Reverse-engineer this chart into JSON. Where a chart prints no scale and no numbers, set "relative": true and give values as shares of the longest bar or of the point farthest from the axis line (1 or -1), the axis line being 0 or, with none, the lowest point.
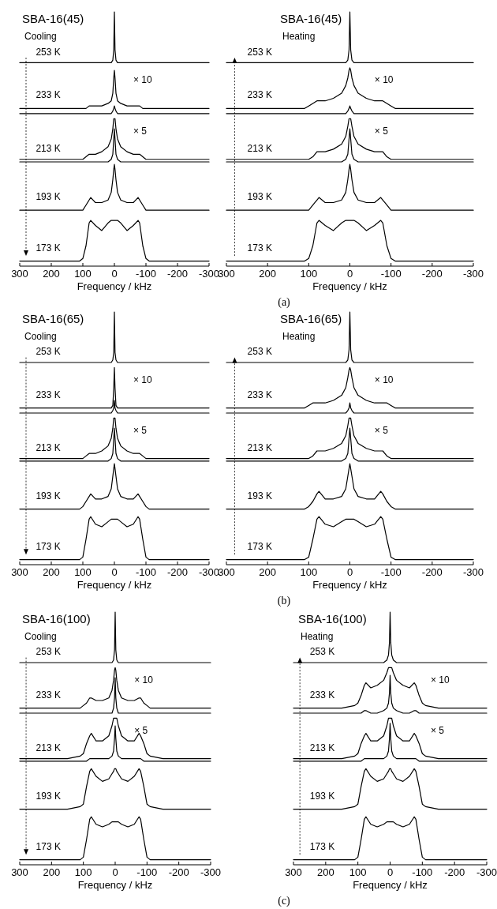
{
  "chart_data": [
    {
      "type": "line",
      "title": "SBA-16(45)",
      "subtitle": "Cooling",
      "xlabel": "Frequency / kHz",
      "relative": true,
      "color": "#000000",
      "xlim": [
        300,
        -300
      ],
      "xticks": [
        300,
        200,
        100,
        0,
        -100,
        -200,
        -300
      ],
      "x": [
        300,
        200,
        150,
        110,
        100,
        90,
        80,
        75,
        60,
        40,
        20,
        10,
        5,
        2,
        0,
        -2,
        -5,
        -10,
        -20,
        -40,
        -60,
        -75,
        -80,
        -90,
        -100,
        -110,
        -150,
        -200,
        -300
      ],
      "series": [
        {
          "values": [
            0.8,
            0.8,
            0.8,
            0.8,
            0.8,
            0.8,
            0.8,
            0.8,
            0.8,
            0.8,
            0.8,
            0.8,
            0.81,
            0.85,
            1,
            0.85,
            0.81,
            0.8,
            0.8,
            0.8,
            0.8,
            0.8,
            0.8,
            0.8,
            0.8,
            0.8,
            0.8,
            0.8,
            0.8
          ]
        },
        {
          "values": [
            0.62,
            0.62,
            0.62,
            0.62,
            0.62,
            0.62,
            0.63,
            0.63,
            0.63,
            0.63,
            0.64,
            0.65,
            0.68,
            0.74,
            0.77,
            0.74,
            0.68,
            0.65,
            0.64,
            0.63,
            0.63,
            0.63,
            0.63,
            0.62,
            0.62,
            0.62,
            0.62,
            0.62,
            0.62
          ]
        },
        {
          "values": [
            0.6,
            0.6,
            0.6,
            0.6,
            0.6,
            0.6,
            0.6,
            0.6,
            0.6,
            0.6,
            0.6,
            0.6,
            0.61,
            0.62,
            0.63,
            0.62,
            0.61,
            0.6,
            0.6,
            0.6,
            0.6,
            0.6,
            0.6,
            0.6,
            0.6,
            0.6,
            0.6,
            0.6,
            0.6
          ]
        },
        {
          "values": [
            0.42,
            0.42,
            0.42,
            0.42,
            0.42,
            0.43,
            0.44,
            0.44,
            0.44,
            0.45,
            0.47,
            0.5,
            0.54,
            0.58,
            0.58,
            0.58,
            0.54,
            0.5,
            0.47,
            0.45,
            0.44,
            0.44,
            0.44,
            0.43,
            0.42,
            0.42,
            0.42,
            0.42,
            0.42
          ]
        },
        {
          "values": [
            0.41,
            0.41,
            0.41,
            0.41,
            0.41,
            0.41,
            0.41,
            0.41,
            0.41,
            0.41,
            0.41,
            0.42,
            0.44,
            0.5,
            0.54,
            0.5,
            0.44,
            0.42,
            0.41,
            0.41,
            0.41,
            0.41,
            0.41,
            0.41,
            0.41,
            0.41,
            0.41,
            0.41,
            0.41
          ]
        },
        {
          "values": [
            0.22,
            0.22,
            0.22,
            0.22,
            0.22,
            0.24,
            0.26,
            0.27,
            0.25,
            0.25,
            0.26,
            0.29,
            0.34,
            0.38,
            0.4,
            0.38,
            0.34,
            0.29,
            0.26,
            0.25,
            0.25,
            0.27,
            0.26,
            0.24,
            0.22,
            0.22,
            0.22,
            0.22,
            0.22
          ]
        },
        {
          "values": [
            0.02,
            0.02,
            0.02,
            0.02,
            0.03,
            0.08,
            0.17,
            0.18,
            0.16,
            0.14,
            0.17,
            0.18,
            0.18,
            0.18,
            0.18,
            0.18,
            0.18,
            0.18,
            0.17,
            0.14,
            0.16,
            0.18,
            0.17,
            0.08,
            0.03,
            0.02,
            0.02,
            0.02,
            0.02
          ]
        }
      ],
      "annotations": [
        "253 K",
        "233 K",
        "× 10",
        "213 K",
        "× 5",
        "193 K",
        "173 K"
      ]
    },
    {
      "type": "line",
      "title": "SBA-16(45)",
      "subtitle": "Heating",
      "xlabel": "Frequency / kHz",
      "relative": true,
      "color": "#000000",
      "xlim": [
        300,
        -300
      ],
      "xticks": [
        300,
        200,
        100,
        0,
        -100,
        -200,
        -300
      ],
      "x": [
        300,
        200,
        150,
        110,
        100,
        90,
        80,
        75,
        60,
        40,
        20,
        10,
        5,
        2,
        0,
        -2,
        -5,
        -10,
        -20,
        -40,
        -60,
        -75,
        -80,
        -90,
        -100,
        -110,
        -150,
        -200,
        -300
      ],
      "series": [
        {
          "values": [
            0.8,
            0.8,
            0.8,
            0.8,
            0.8,
            0.8,
            0.8,
            0.8,
            0.8,
            0.8,
            0.8,
            0.8,
            0.81,
            0.85,
            1,
            0.85,
            0.81,
            0.8,
            0.8,
            0.8,
            0.8,
            0.8,
            0.8,
            0.8,
            0.8,
            0.8,
            0.8,
            0.8,
            0.8
          ]
        },
        {
          "values": [
            0.62,
            0.62,
            0.62,
            0.62,
            0.63,
            0.64,
            0.65,
            0.65,
            0.65,
            0.66,
            0.68,
            0.71,
            0.74,
            0.77,
            0.78,
            0.77,
            0.74,
            0.71,
            0.68,
            0.66,
            0.65,
            0.65,
            0.65,
            0.64,
            0.63,
            0.62,
            0.62,
            0.62,
            0.62
          ]
        },
        {
          "values": [
            0.6,
            0.6,
            0.6,
            0.6,
            0.6,
            0.6,
            0.6,
            0.6,
            0.6,
            0.6,
            0.6,
            0.6,
            0.61,
            0.62,
            0.63,
            0.62,
            0.61,
            0.6,
            0.6,
            0.6,
            0.6,
            0.6,
            0.6,
            0.6,
            0.6,
            0.6,
            0.6,
            0.6,
            0.6
          ]
        },
        {
          "values": [
            0.42,
            0.42,
            0.42,
            0.42,
            0.42,
            0.43,
            0.45,
            0.45,
            0.45,
            0.46,
            0.48,
            0.51,
            0.55,
            0.58,
            0.58,
            0.58,
            0.55,
            0.51,
            0.48,
            0.46,
            0.45,
            0.45,
            0.45,
            0.43,
            0.42,
            0.42,
            0.42,
            0.42,
            0.42
          ]
        },
        {
          "values": [
            0.41,
            0.41,
            0.41,
            0.41,
            0.41,
            0.41,
            0.41,
            0.41,
            0.41,
            0.41,
            0.41,
            0.42,
            0.44,
            0.5,
            0.54,
            0.5,
            0.44,
            0.42,
            0.41,
            0.41,
            0.41,
            0.41,
            0.41,
            0.41,
            0.41,
            0.41,
            0.41,
            0.41,
            0.41
          ]
        },
        {
          "values": [
            0.22,
            0.22,
            0.22,
            0.22,
            0.22,
            0.24,
            0.26,
            0.27,
            0.25,
            0.25,
            0.26,
            0.29,
            0.34,
            0.38,
            0.4,
            0.38,
            0.34,
            0.29,
            0.26,
            0.25,
            0.25,
            0.27,
            0.26,
            0.24,
            0.22,
            0.22,
            0.22,
            0.22,
            0.22
          ]
        },
        {
          "values": [
            0.02,
            0.02,
            0.02,
            0.02,
            0.03,
            0.08,
            0.17,
            0.18,
            0.16,
            0.14,
            0.17,
            0.18,
            0.18,
            0.18,
            0.18,
            0.18,
            0.18,
            0.18,
            0.17,
            0.14,
            0.16,
            0.18,
            0.17,
            0.08,
            0.03,
            0.02,
            0.02,
            0.02,
            0.02
          ]
        }
      ],
      "annotations": [
        "253 K",
        "233 K",
        "× 10",
        "213 K",
        "× 5",
        "193 K",
        "173 K",
        "(a)"
      ]
    },
    {
      "type": "line",
      "title": "SBA-16(65)",
      "subtitle": "Cooling",
      "xlabel": "Frequency / kHz",
      "relative": true,
      "color": "#000000",
      "xlim": [
        300,
        -300
      ],
      "xticks": [
        300,
        200,
        100,
        0,
        -100,
        -200,
        -300
      ],
      "x": [
        300,
        200,
        150,
        110,
        100,
        90,
        80,
        75,
        60,
        40,
        20,
        10,
        5,
        2,
        0,
        -2,
        -5,
        -10,
        -20,
        -40,
        -60,
        -75,
        -80,
        -90,
        -100,
        -110,
        -150,
        -200,
        -300
      ],
      "series": [
        {
          "values": [
            0.8,
            0.8,
            0.8,
            0.8,
            0.8,
            0.8,
            0.8,
            0.8,
            0.8,
            0.8,
            0.8,
            0.8,
            0.81,
            0.84,
            1,
            0.84,
            0.81,
            0.8,
            0.8,
            0.8,
            0.8,
            0.8,
            0.8,
            0.8,
            0.8,
            0.8,
            0.8,
            0.8,
            0.8
          ]
        },
        {
          "values": [
            0.62,
            0.62,
            0.62,
            0.62,
            0.62,
            0.62,
            0.62,
            0.62,
            0.62,
            0.62,
            0.62,
            0.62,
            0.63,
            0.7,
            0.78,
            0.7,
            0.63,
            0.62,
            0.62,
            0.62,
            0.62,
            0.62,
            0.62,
            0.62,
            0.62,
            0.62,
            0.62,
            0.62,
            0.62
          ]
        },
        {
          "values": [
            0.6,
            0.6,
            0.6,
            0.6,
            0.6,
            0.6,
            0.6,
            0.6,
            0.6,
            0.6,
            0.6,
            0.6,
            0.61,
            0.62,
            0.65,
            0.62,
            0.61,
            0.6,
            0.6,
            0.6,
            0.6,
            0.6,
            0.6,
            0.6,
            0.6,
            0.6,
            0.6,
            0.6,
            0.6
          ]
        },
        {
          "values": [
            0.42,
            0.42,
            0.42,
            0.42,
            0.42,
            0.43,
            0.44,
            0.44,
            0.44,
            0.45,
            0.47,
            0.5,
            0.54,
            0.58,
            0.58,
            0.58,
            0.54,
            0.5,
            0.47,
            0.45,
            0.44,
            0.44,
            0.44,
            0.43,
            0.42,
            0.42,
            0.42,
            0.42,
            0.42
          ]
        },
        {
          "values": [
            0.41,
            0.41,
            0.41,
            0.41,
            0.41,
            0.41,
            0.41,
            0.41,
            0.41,
            0.41,
            0.41,
            0.42,
            0.44,
            0.5,
            0.54,
            0.5,
            0.44,
            0.42,
            0.41,
            0.41,
            0.41,
            0.41,
            0.41,
            0.41,
            0.41,
            0.41,
            0.41,
            0.41,
            0.41
          ]
        },
        {
          "values": [
            0.22,
            0.22,
            0.22,
            0.22,
            0.23,
            0.25,
            0.27,
            0.28,
            0.26,
            0.26,
            0.27,
            0.3,
            0.35,
            0.38,
            0.4,
            0.38,
            0.35,
            0.3,
            0.27,
            0.26,
            0.26,
            0.28,
            0.27,
            0.25,
            0.23,
            0.22,
            0.22,
            0.22,
            0.22
          ]
        },
        {
          "values": [
            0.02,
            0.02,
            0.02,
            0.02,
            0.03,
            0.1,
            0.18,
            0.19,
            0.16,
            0.15,
            0.17,
            0.18,
            0.18,
            0.18,
            0.18,
            0.18,
            0.18,
            0.18,
            0.17,
            0.15,
            0.16,
            0.19,
            0.18,
            0.1,
            0.03,
            0.02,
            0.02,
            0.02,
            0.02
          ]
        }
      ],
      "annotations": [
        "253 K",
        "233 K",
        "× 10",
        "213 K",
        "× 5",
        "193 K",
        "173 K"
      ]
    },
    {
      "type": "line",
      "title": "SBA-16(65)",
      "subtitle": "Heating",
      "xlabel": "Frequency / kHz",
      "relative": true,
      "color": "#000000",
      "xlim": [
        300,
        -300
      ],
      "xticks": [
        300,
        200,
        100,
        0,
        -100,
        -200,
        -300
      ],
      "x": [
        300,
        200,
        150,
        110,
        100,
        90,
        80,
        75,
        60,
        40,
        20,
        10,
        5,
        2,
        0,
        -2,
        -5,
        -10,
        -20,
        -40,
        -60,
        -75,
        -80,
        -90,
        -100,
        -110,
        -150,
        -200,
        -300
      ],
      "series": [
        {
          "values": [
            0.8,
            0.8,
            0.8,
            0.8,
            0.8,
            0.8,
            0.8,
            0.8,
            0.8,
            0.8,
            0.8,
            0.8,
            0.81,
            0.85,
            1,
            0.85,
            0.81,
            0.8,
            0.8,
            0.8,
            0.8,
            0.8,
            0.8,
            0.8,
            0.8,
            0.8,
            0.8,
            0.8,
            0.8
          ]
        },
        {
          "values": [
            0.62,
            0.62,
            0.62,
            0.62,
            0.63,
            0.64,
            0.64,
            0.64,
            0.64,
            0.65,
            0.67,
            0.7,
            0.74,
            0.77,
            0.78,
            0.77,
            0.74,
            0.7,
            0.67,
            0.65,
            0.64,
            0.64,
            0.64,
            0.64,
            0.63,
            0.62,
            0.62,
            0.62,
            0.62
          ]
        },
        {
          "values": [
            0.6,
            0.6,
            0.6,
            0.6,
            0.6,
            0.6,
            0.6,
            0.6,
            0.6,
            0.6,
            0.6,
            0.6,
            0.61,
            0.62,
            0.64,
            0.62,
            0.61,
            0.6,
            0.6,
            0.6,
            0.6,
            0.6,
            0.6,
            0.6,
            0.6,
            0.6,
            0.6,
            0.6,
            0.6
          ]
        },
        {
          "values": [
            0.42,
            0.42,
            0.42,
            0.42,
            0.42,
            0.43,
            0.45,
            0.45,
            0.45,
            0.46,
            0.48,
            0.51,
            0.55,
            0.58,
            0.58,
            0.58,
            0.55,
            0.51,
            0.48,
            0.46,
            0.45,
            0.45,
            0.45,
            0.43,
            0.42,
            0.42,
            0.42,
            0.42,
            0.42
          ]
        },
        {
          "values": [
            0.41,
            0.41,
            0.41,
            0.41,
            0.41,
            0.41,
            0.41,
            0.41,
            0.41,
            0.41,
            0.41,
            0.42,
            0.44,
            0.5,
            0.54,
            0.5,
            0.44,
            0.42,
            0.41,
            0.41,
            0.41,
            0.41,
            0.41,
            0.41,
            0.41,
            0.41,
            0.41,
            0.41,
            0.41
          ]
        },
        {
          "values": [
            0.22,
            0.22,
            0.22,
            0.22,
            0.23,
            0.25,
            0.28,
            0.29,
            0.26,
            0.26,
            0.27,
            0.3,
            0.35,
            0.38,
            0.4,
            0.38,
            0.35,
            0.3,
            0.27,
            0.26,
            0.26,
            0.29,
            0.28,
            0.25,
            0.23,
            0.22,
            0.22,
            0.22,
            0.22
          ]
        },
        {
          "values": [
            0.02,
            0.02,
            0.02,
            0.02,
            0.03,
            0.1,
            0.18,
            0.19,
            0.16,
            0.15,
            0.17,
            0.18,
            0.18,
            0.18,
            0.18,
            0.18,
            0.18,
            0.18,
            0.17,
            0.15,
            0.16,
            0.19,
            0.18,
            0.1,
            0.03,
            0.02,
            0.02,
            0.02,
            0.02
          ]
        }
      ],
      "annotations": [
        "253 K",
        "233 K",
        "× 10",
        "213 K",
        "× 5",
        "193 K",
        "173 K",
        "(b)"
      ]
    },
    {
      "type": "line",
      "title": "SBA-16(100)",
      "subtitle": "Cooling",
      "xlabel": "Frequency / kHz",
      "relative": true,
      "color": "#000000",
      "xlim": [
        300,
        -300
      ],
      "xticks": [
        300,
        200,
        100,
        0,
        -100,
        -200,
        -300
      ],
      "x": [
        300,
        200,
        150,
        110,
        100,
        90,
        80,
        75,
        60,
        40,
        20,
        10,
        5,
        2,
        0,
        -2,
        -5,
        -10,
        -20,
        -40,
        -60,
        -75,
        -80,
        -90,
        -100,
        -110,
        -150,
        -200,
        -300
      ],
      "series": [
        {
          "values": [
            0.8,
            0.8,
            0.8,
            0.8,
            0.8,
            0.8,
            0.8,
            0.8,
            0.8,
            0.8,
            0.8,
            0.8,
            0.81,
            0.85,
            1,
            0.85,
            0.81,
            0.8,
            0.8,
            0.8,
            0.8,
            0.8,
            0.8,
            0.8,
            0.8,
            0.8,
            0.8,
            0.8,
            0.8
          ]
        },
        {
          "values": [
            0.62,
            0.62,
            0.62,
            0.62,
            0.63,
            0.64,
            0.66,
            0.66,
            0.65,
            0.65,
            0.66,
            0.69,
            0.73,
            0.77,
            0.78,
            0.77,
            0.73,
            0.69,
            0.66,
            0.65,
            0.65,
            0.66,
            0.66,
            0.64,
            0.63,
            0.62,
            0.62,
            0.62,
            0.62
          ]
        },
        {
          "values": [
            0.6,
            0.6,
            0.6,
            0.6,
            0.6,
            0.6,
            0.6,
            0.6,
            0.6,
            0.6,
            0.6,
            0.6,
            0.62,
            0.66,
            0.74,
            0.66,
            0.62,
            0.6,
            0.6,
            0.6,
            0.6,
            0.6,
            0.6,
            0.6,
            0.6,
            0.6,
            0.6,
            0.6,
            0.6
          ]
        },
        {
          "values": [
            0.42,
            0.42,
            0.42,
            0.43,
            0.44,
            0.48,
            0.51,
            0.52,
            0.49,
            0.49,
            0.51,
            0.55,
            0.58,
            0.58,
            0.58,
            0.58,
            0.58,
            0.55,
            0.51,
            0.49,
            0.49,
            0.52,
            0.51,
            0.48,
            0.44,
            0.43,
            0.42,
            0.42,
            0.42
          ]
        },
        {
          "values": [
            0.41,
            0.41,
            0.41,
            0.41,
            0.41,
            0.41,
            0.42,
            0.42,
            0.42,
            0.42,
            0.42,
            0.43,
            0.45,
            0.5,
            0.55,
            0.5,
            0.45,
            0.43,
            0.42,
            0.42,
            0.42,
            0.42,
            0.42,
            0.41,
            0.41,
            0.41,
            0.41,
            0.41,
            0.41
          ]
        },
        {
          "values": [
            0.22,
            0.22,
            0.22,
            0.23,
            0.24,
            0.31,
            0.37,
            0.38,
            0.35,
            0.33,
            0.34,
            0.36,
            0.37,
            0.38,
            0.38,
            0.38,
            0.37,
            0.36,
            0.34,
            0.33,
            0.35,
            0.38,
            0.37,
            0.31,
            0.24,
            0.23,
            0.22,
            0.22,
            0.22
          ]
        },
        {
          "values": [
            0.02,
            0.02,
            0.02,
            0.02,
            0.03,
            0.1,
            0.18,
            0.19,
            0.16,
            0.15,
            0.16,
            0.17,
            0.17,
            0.17,
            0.17,
            0.17,
            0.17,
            0.17,
            0.16,
            0.15,
            0.16,
            0.19,
            0.18,
            0.1,
            0.03,
            0.02,
            0.02,
            0.02,
            0.02
          ]
        }
      ],
      "annotations": [
        "253 K",
        "233 K",
        "× 10",
        "213 K",
        "× 5",
        "193 K",
        "173 K"
      ]
    },
    {
      "type": "line",
      "title": "SBA-16(100)",
      "subtitle": "Heating",
      "xlabel": "Frequency / kHz",
      "relative": true,
      "color": "#000000",
      "xlim": [
        300,
        -300
      ],
      "xticks": [
        300,
        200,
        100,
        0,
        -100,
        -200,
        -300
      ],
      "x": [
        300,
        200,
        150,
        110,
        100,
        90,
        80,
        75,
        60,
        40,
        20,
        10,
        5,
        2,
        0,
        -2,
        -5,
        -10,
        -20,
        -40,
        -60,
        -75,
        -80,
        -90,
        -100,
        -110,
        -150,
        -200,
        -300
      ],
      "series": [
        {
          "values": [
            0.8,
            0.8,
            0.8,
            0.8,
            0.8,
            0.8,
            0.8,
            0.8,
            0.8,
            0.8,
            0.8,
            0.81,
            0.83,
            0.88,
            1,
            0.88,
            0.83,
            0.81,
            0.8,
            0.8,
            0.8,
            0.8,
            0.8,
            0.8,
            0.8,
            0.8,
            0.8,
            0.8,
            0.8
          ]
        },
        {
          "values": [
            0.62,
            0.62,
            0.62,
            0.63,
            0.64,
            0.67,
            0.71,
            0.72,
            0.7,
            0.71,
            0.73,
            0.76,
            0.78,
            0.78,
            0.78,
            0.78,
            0.78,
            0.76,
            0.73,
            0.71,
            0.7,
            0.72,
            0.71,
            0.67,
            0.64,
            0.63,
            0.62,
            0.62,
            0.62
          ]
        },
        {
          "values": [
            0.6,
            0.6,
            0.6,
            0.6,
            0.6,
            0.6,
            0.61,
            0.61,
            0.6,
            0.6,
            0.61,
            0.62,
            0.64,
            0.68,
            0.75,
            0.68,
            0.64,
            0.62,
            0.61,
            0.6,
            0.6,
            0.61,
            0.61,
            0.6,
            0.6,
            0.6,
            0.6,
            0.6,
            0.6
          ]
        },
        {
          "values": [
            0.42,
            0.42,
            0.42,
            0.43,
            0.44,
            0.48,
            0.51,
            0.52,
            0.49,
            0.49,
            0.51,
            0.55,
            0.58,
            0.58,
            0.58,
            0.58,
            0.58,
            0.55,
            0.51,
            0.49,
            0.49,
            0.52,
            0.51,
            0.48,
            0.44,
            0.43,
            0.42,
            0.42,
            0.42
          ]
        },
        {
          "values": [
            0.41,
            0.41,
            0.41,
            0.41,
            0.41,
            0.41,
            0.42,
            0.42,
            0.42,
            0.42,
            0.42,
            0.43,
            0.45,
            0.5,
            0.56,
            0.5,
            0.45,
            0.43,
            0.42,
            0.42,
            0.42,
            0.42,
            0.42,
            0.41,
            0.41,
            0.41,
            0.41,
            0.41,
            0.41
          ]
        },
        {
          "values": [
            0.22,
            0.22,
            0.22,
            0.23,
            0.24,
            0.31,
            0.37,
            0.38,
            0.35,
            0.33,
            0.34,
            0.36,
            0.37,
            0.38,
            0.38,
            0.38,
            0.37,
            0.36,
            0.34,
            0.33,
            0.35,
            0.38,
            0.37,
            0.31,
            0.24,
            0.23,
            0.22,
            0.22,
            0.22
          ]
        },
        {
          "values": [
            0.02,
            0.02,
            0.02,
            0.02,
            0.03,
            0.1,
            0.18,
            0.19,
            0.16,
            0.15,
            0.16,
            0.17,
            0.17,
            0.17,
            0.17,
            0.17,
            0.17,
            0.17,
            0.16,
            0.15,
            0.16,
            0.19,
            0.18,
            0.1,
            0.03,
            0.02,
            0.02,
            0.02,
            0.02
          ]
        }
      ],
      "annotations": [
        "253 K",
        "233 K",
        "× 10",
        "213 K",
        "× 5",
        "193 K",
        "173 K",
        "(c)"
      ]
    }
  ]
}
